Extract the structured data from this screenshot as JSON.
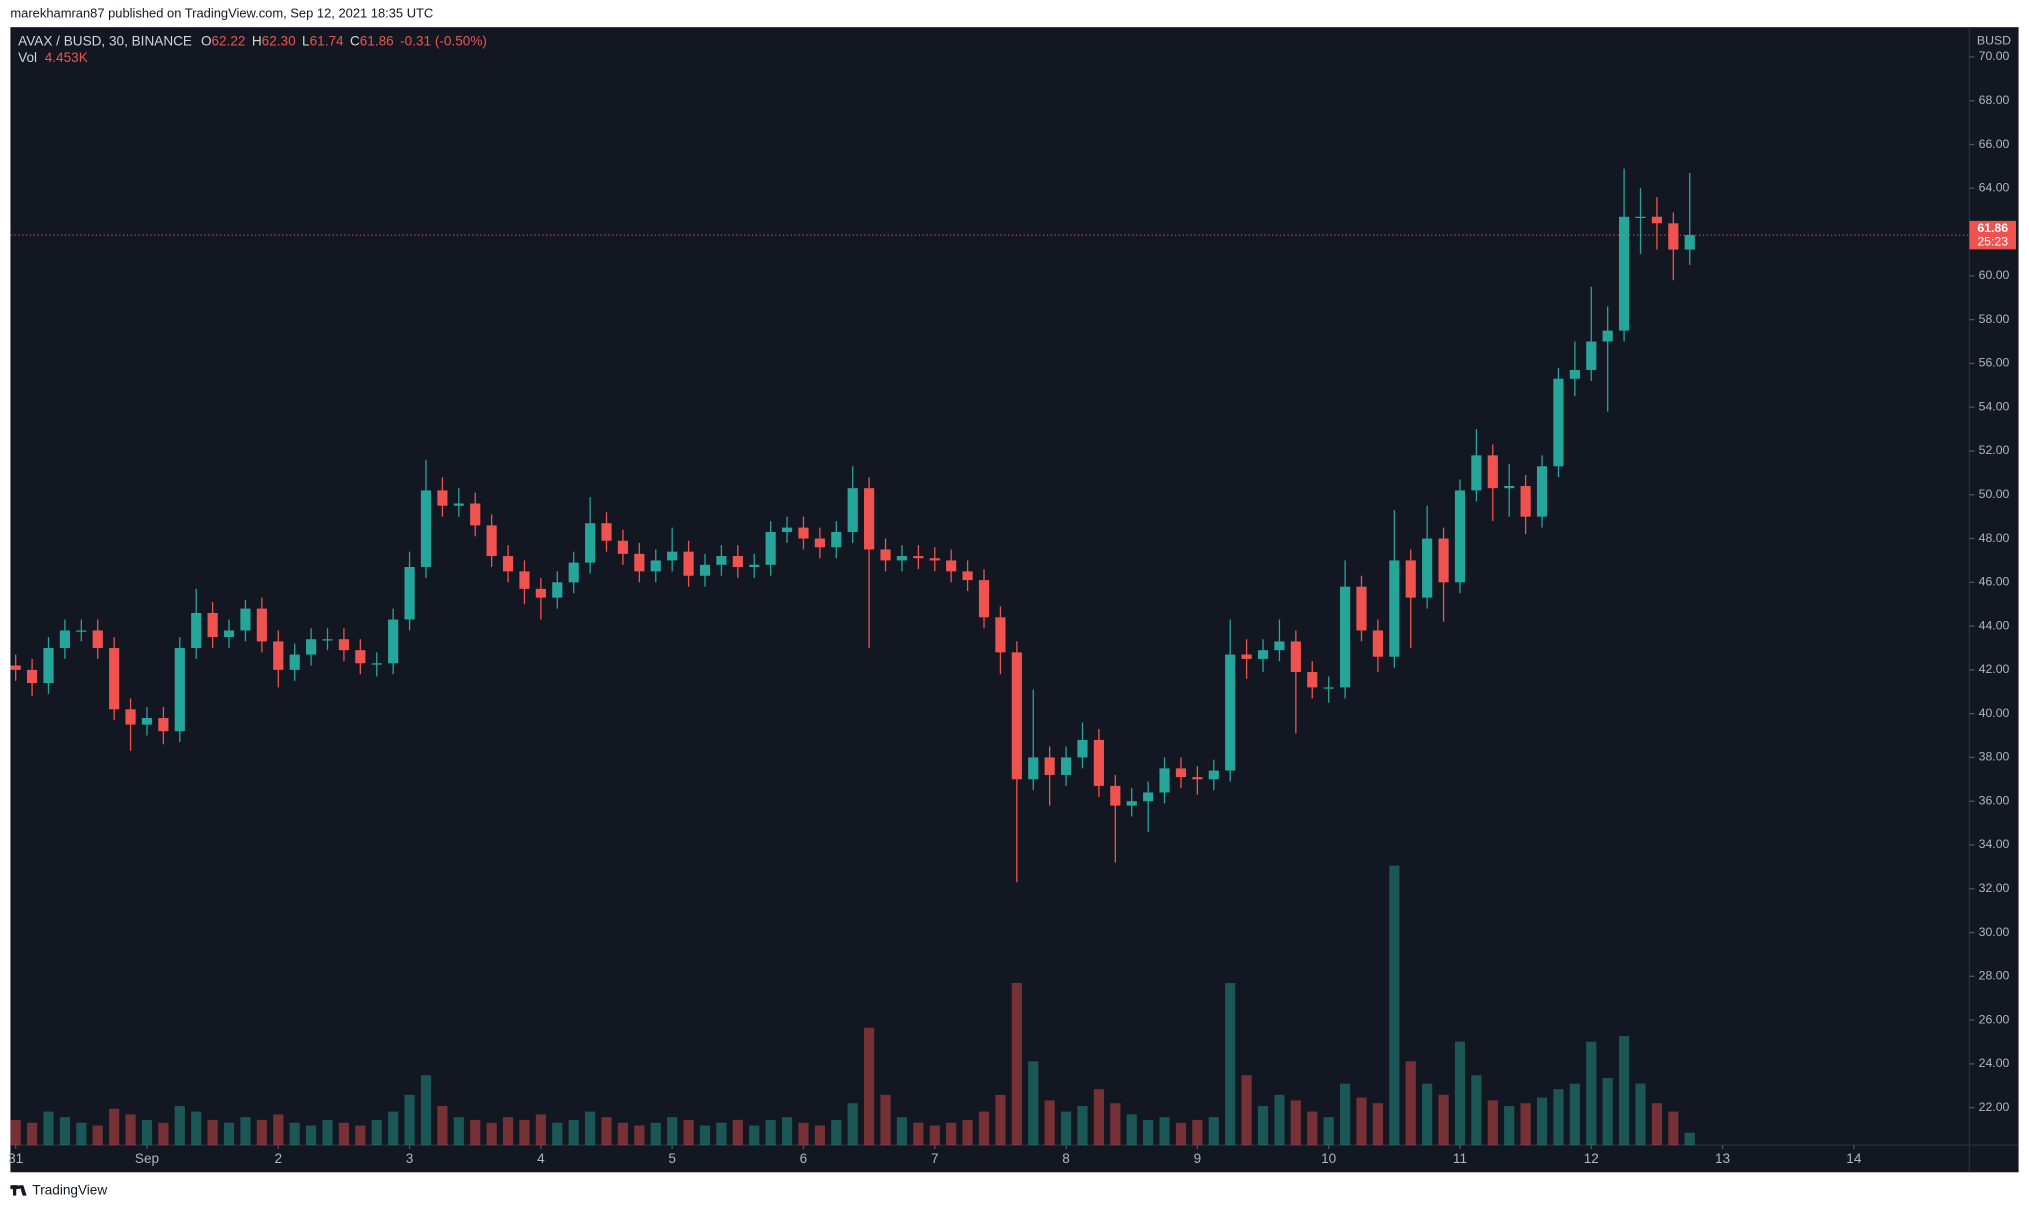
{
  "header": {
    "author_line": "marekhamran87 published on TradingView.com, Sep 12, 2021 18:35 UTC",
    "logo_text": "TradingView"
  },
  "chart_data": {
    "type": "candlestick",
    "symbol": "AVAX / BUSD, 30, BINANCE",
    "currency": "BUSD",
    "up_color": "#26a69a",
    "down_color": "#ef5350",
    "legend": {
      "labels": [
        "O",
        "H",
        "L",
        "C"
      ],
      "values": [
        62.22,
        {
          "value": 62.3,
          "label": "62.30"
        },
        61.74,
        61.86
      ],
      "change": -0.31,
      "change_pct": {
        "value": -0.5,
        "label": "(-0.50%)"
      },
      "volume_name": "Vol",
      "volume": {
        "value": 4.453,
        "label": "4.453K"
      }
    },
    "last_price": 61.86,
    "countdown": "25:23",
    "xlim": [
      -0.04,
      14.88
    ],
    "ylim": [
      20.29,
      71.36
    ],
    "volume_lim": [
      0,
      400
    ],
    "xticks": [
      {
        "value": 0,
        "label": "31"
      },
      {
        "value": 1,
        "label": "Sep"
      },
      2,
      3,
      4,
      5,
      6,
      7,
      8,
      9,
      10,
      11,
      12,
      13,
      14
    ],
    "yticks": [
      {
        "value": 22,
        "label": "22.00"
      },
      {
        "value": 24,
        "label": "24.00"
      },
      {
        "value": 26,
        "label": "26.00"
      },
      {
        "value": 28,
        "label": "28.00"
      },
      {
        "value": 30,
        "label": "30.00"
      },
      {
        "value": 32,
        "label": "32.00"
      },
      {
        "value": 34,
        "label": "34.00"
      },
      {
        "value": 36,
        "label": "36.00"
      },
      {
        "value": 38,
        "label": "38.00"
      },
      {
        "value": 40,
        "label": "40.00"
      },
      {
        "value": 42,
        "label": "42.00"
      },
      {
        "value": 44,
        "label": "44.00"
      },
      {
        "value": 46,
        "label": "46.00"
      },
      {
        "value": 48,
        "label": "48.00"
      },
      {
        "value": 50,
        "label": "50.00"
      },
      {
        "value": 52,
        "label": "52.00"
      },
      {
        "value": 54,
        "label": "54.00"
      },
      {
        "value": 56,
        "label": "56.00"
      },
      {
        "value": 58,
        "label": "58.00"
      },
      {
        "value": 60,
        "label": "60.00"
      },
      {
        "value": 62,
        "label": "62.00"
      },
      {
        "value": 64,
        "label": "64.00"
      },
      {
        "value": 66,
        "label": "66.00"
      },
      {
        "value": 68,
        "label": "68.00"
      },
      {
        "value": 70,
        "label": "70.00"
      }
    ],
    "x": [
      0,
      0.125,
      0.25,
      0.375,
      0.5,
      0.625,
      0.75,
      0.875,
      1,
      1.125,
      1.25,
      1.375,
      1.5,
      1.625,
      1.75,
      1.875,
      2,
      2.125,
      2.25,
      2.375,
      2.5,
      2.625,
      2.75,
      2.875,
      3,
      3.125,
      3.25,
      3.375,
      3.5,
      3.625,
      3.75,
      3.875,
      4,
      4.125,
      4.25,
      4.375,
      4.5,
      4.625,
      4.75,
      4.875,
      5,
      5.125,
      5.25,
      5.375,
      5.5,
      5.625,
      5.75,
      5.875,
      6,
      6.125,
      6.25,
      6.375,
      6.5,
      6.625,
      6.75,
      6.875,
      7,
      7.125,
      7.25,
      7.375,
      7.5,
      7.625,
      7.75,
      7.875,
      8,
      8.125,
      8.25,
      8.375,
      8.5,
      8.625,
      8.75,
      8.875,
      9,
      9.125,
      9.25,
      9.375,
      9.5,
      9.625,
      9.75,
      9.875,
      10,
      10.125,
      10.25,
      10.375,
      10.5,
      10.625,
      10.75,
      10.875,
      11,
      11.125,
      11.25,
      11.375,
      11.5,
      11.625,
      11.75,
      11.875,
      12,
      12.125,
      12.25,
      12.375,
      12.5,
      12.625,
      12.75
    ],
    "open": [
      42.2,
      42.0,
      41.4,
      43.0,
      43.8,
      43.8,
      43.0,
      40.2,
      39.5,
      39.8,
      39.2,
      43.0,
      44.6,
      43.5,
      43.8,
      44.8,
      43.3,
      42.0,
      42.7,
      43.4,
      43.4,
      42.9,
      42.3,
      42.3,
      44.3,
      46.7,
      50.2,
      49.5,
      49.6,
      48.6,
      47.2,
      46.5,
      45.7,
      45.3,
      46.0,
      46.9,
      48.7,
      47.9,
      47.3,
      46.5,
      47.0,
      47.4,
      46.3,
      46.8,
      47.2,
      46.7,
      46.8,
      48.3,
      48.5,
      48.0,
      47.6,
      48.3,
      50.3,
      47.5,
      47.0,
      47.2,
      47.1,
      47.0,
      46.5,
      46.1,
      44.4,
      42.8,
      37.0,
      38.0,
      37.2,
      38.0,
      38.8,
      36.7,
      35.8,
      36.0,
      36.4,
      37.5,
      37.1,
      37.0,
      37.4,
      42.7,
      42.5,
      42.9,
      43.3,
      41.9,
      41.2,
      41.2,
      45.8,
      43.8,
      42.6,
      47.0,
      45.3,
      48.0,
      46.0,
      50.2,
      51.8,
      50.3,
      50.4,
      49.0,
      51.3,
      55.3,
      55.7,
      57.0,
      57.5,
      62.7,
      62.7,
      62.4,
      61.2
    ],
    "high": [
      42.7,
      42.5,
      43.5,
      44.3,
      44.3,
      44.3,
      43.5,
      40.7,
      40.3,
      40.3,
      43.5,
      45.7,
      45.1,
      44.3,
      45.2,
      45.3,
      43.8,
      43.2,
      43.9,
      43.9,
      43.9,
      43.4,
      42.8,
      44.8,
      47.4,
      51.6,
      50.8,
      50.3,
      50.1,
      49.1,
      47.7,
      47.0,
      46.2,
      46.5,
      47.4,
      49.9,
      49.2,
      48.4,
      47.8,
      47.5,
      48.5,
      47.9,
      47.3,
      47.7,
      47.7,
      47.3,
      48.8,
      49.0,
      49.0,
      48.5,
      48.8,
      51.3,
      50.8,
      48.0,
      47.7,
      47.7,
      47.6,
      47.5,
      47.0,
      46.6,
      44.9,
      43.3,
      41.1,
      38.5,
      38.5,
      39.6,
      39.3,
      37.2,
      36.6,
      36.9,
      38.0,
      38.0,
      37.6,
      37.9,
      44.3,
      43.4,
      43.4,
      44.3,
      43.8,
      42.4,
      41.7,
      47.0,
      46.3,
      44.3,
      49.3,
      47.5,
      49.5,
      48.5,
      50.7,
      53.0,
      52.3,
      51.4,
      50.9,
      51.8,
      55.8,
      57.0,
      59.5,
      58.6,
      64.9,
      64.0,
      63.6,
      62.9,
      64.7
    ],
    "low": [
      41.5,
      40.8,
      40.9,
      42.5,
      43.3,
      42.5,
      39.7,
      38.3,
      39.0,
      38.6,
      38.7,
      42.5,
      43.0,
      43.0,
      43.3,
      42.8,
      41.2,
      41.5,
      42.2,
      42.9,
      42.4,
      41.8,
      41.7,
      41.8,
      43.8,
      46.2,
      49.0,
      49.0,
      48.1,
      46.7,
      46.0,
      45.0,
      44.3,
      44.8,
      45.5,
      46.4,
      47.4,
      46.8,
      46.0,
      46.0,
      46.5,
      45.8,
      45.8,
      46.3,
      46.2,
      46.2,
      46.3,
      47.8,
      47.5,
      47.1,
      47.1,
      47.8,
      43.0,
      46.5,
      46.5,
      46.6,
      46.5,
      46.0,
      45.6,
      43.9,
      41.8,
      32.3,
      36.5,
      35.8,
      36.7,
      37.5,
      36.2,
      33.2,
      35.3,
      34.6,
      35.9,
      36.6,
      36.3,
      36.5,
      36.9,
      41.6,
      41.9,
      42.4,
      39.1,
      40.7,
      40.5,
      40.7,
      43.3,
      41.9,
      42.1,
      43.0,
      44.8,
      44.2,
      45.5,
      49.7,
      48.8,
      49.0,
      48.2,
      48.5,
      50.8,
      54.5,
      55.2,
      53.8,
      57.0,
      61.0,
      61.2,
      59.8,
      60.5
    ],
    "close": [
      42.0,
      41.4,
      43.0,
      43.8,
      43.8,
      43.0,
      40.2,
      39.5,
      39.8,
      39.2,
      43.0,
      44.6,
      43.5,
      43.8,
      44.8,
      43.3,
      42.0,
      42.7,
      43.4,
      43.4,
      42.9,
      42.3,
      42.3,
      44.3,
      46.7,
      50.2,
      49.5,
      49.6,
      48.6,
      47.2,
      46.5,
      45.7,
      45.3,
      46.0,
      46.9,
      48.7,
      47.9,
      47.3,
      46.5,
      47.0,
      47.4,
      46.3,
      46.8,
      47.2,
      46.7,
      46.8,
      48.3,
      48.5,
      48.0,
      47.6,
      48.3,
      50.3,
      47.5,
      47.0,
      47.2,
      47.1,
      47.0,
      46.5,
      46.1,
      44.4,
      42.8,
      37.0,
      38.0,
      37.2,
      38.0,
      38.8,
      36.7,
      35.8,
      36.0,
      36.4,
      37.5,
      37.1,
      37.0,
      37.4,
      42.7,
      42.5,
      42.9,
      43.3,
      41.9,
      41.2,
      41.2,
      45.8,
      43.8,
      42.6,
      47.0,
      45.3,
      48.0,
      46.0,
      50.2,
      51.8,
      50.3,
      50.4,
      49.0,
      51.3,
      55.3,
      55.7,
      57.0,
      57.5,
      62.7,
      62.7,
      62.4,
      61.2,
      61.86
    ],
    "volume": [
      9,
      8,
      12,
      10,
      8,
      7,
      13,
      11,
      9,
      8,
      14,
      12,
      9,
      8,
      10,
      9,
      11,
      8,
      7,
      9,
      8,
      7,
      9,
      12,
      18,
      25,
      14,
      10,
      9,
      8,
      10,
      9,
      11,
      8,
      9,
      12,
      10,
      8,
      7,
      8,
      10,
      9,
      7,
      8,
      9,
      7,
      9,
      10,
      8,
      7,
      9,
      15,
      42,
      18,
      10,
      8,
      7,
      8,
      9,
      12,
      18,
      58,
      30,
      16,
      12,
      14,
      20,
      15,
      11,
      9,
      10,
      8,
      9,
      10,
      58,
      25,
      14,
      18,
      16,
      12,
      10,
      22,
      17,
      15,
      100,
      30,
      22,
      18,
      37,
      25,
      16,
      14,
      15,
      17,
      20,
      22,
      37,
      24,
      39,
      22,
      15,
      12,
      4.453
    ]
  }
}
